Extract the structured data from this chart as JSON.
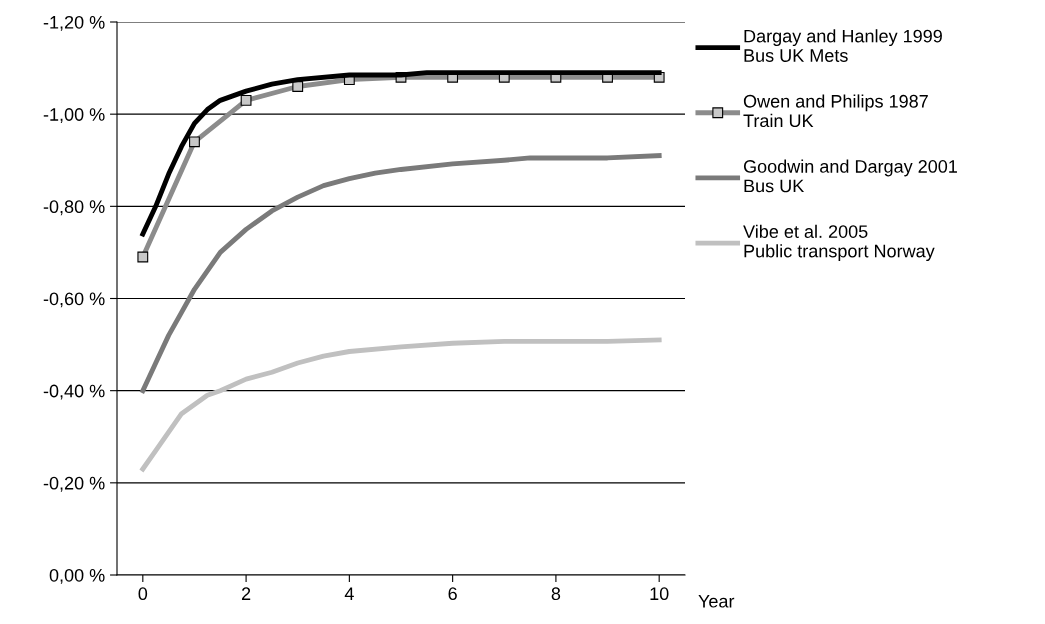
{
  "chart_data": {
    "type": "line",
    "xlabel": "Year",
    "xlim": [
      -0.5,
      10.5
    ],
    "xticks": [
      0,
      2,
      4,
      6,
      8,
      10
    ],
    "ylim": [
      0,
      -1.2
    ],
    "yticks": [
      {
        "value": 0,
        "label": "0,00 %"
      },
      {
        "value": -0.2,
        "label": "-0,20 %"
      },
      {
        "value": -0.4,
        "label": "-0,40 %"
      },
      {
        "value": -0.6,
        "label": "-0,60 %"
      },
      {
        "value": -0.8,
        "label": "-0,80 %"
      },
      {
        "value": -1.0,
        "label": "-1,00 %"
      },
      {
        "value": -1.2,
        "label": "-1,20 %"
      }
    ],
    "grid": "y",
    "legend": "right",
    "series": [
      {
        "name": "Dargay and Hanley 1999\nBus UK Mets",
        "color": "#000000",
        "marker": "none",
        "x": [
          0,
          0.25,
          0.5,
          0.75,
          1,
          1.25,
          1.5,
          2,
          2.5,
          3,
          4,
          5,
          5.5,
          6,
          7,
          8,
          9,
          10
        ],
        "values": [
          -0.74,
          -0.8,
          -0.87,
          -0.93,
          -0.98,
          -1.01,
          -1.03,
          -1.05,
          -1.065,
          -1.075,
          -1.085,
          -1.085,
          -1.09,
          -1.09,
          -1.09,
          -1.09,
          -1.09,
          -1.09
        ]
      },
      {
        "name": "Owen and Philips 1987\nTrain UK",
        "color": "#8c8c8c",
        "marker": "square",
        "x": [
          0,
          1,
          2,
          3,
          4,
          5,
          6,
          7,
          8,
          9,
          10
        ],
        "values": [
          -0.69,
          -0.94,
          -1.03,
          -1.06,
          -1.075,
          -1.08,
          -1.08,
          -1.08,
          -1.08,
          -1.08,
          -1.08
        ]
      },
      {
        "name": "Goodwin and Dargay 2001\nBus UK",
        "color": "#7a7a7a",
        "marker": "none",
        "x": [
          0,
          0.25,
          0.5,
          0.75,
          1,
          1.5,
          2,
          2.5,
          3,
          3.5,
          4,
          4.5,
          5,
          6,
          7,
          7.5,
          8,
          9,
          10
        ],
        "values": [
          -0.4,
          -0.46,
          -0.52,
          -0.57,
          -0.62,
          -0.7,
          -0.75,
          -0.79,
          -0.82,
          -0.845,
          -0.86,
          -0.872,
          -0.88,
          -0.892,
          -0.9,
          -0.905,
          -0.905,
          -0.905,
          -0.91
        ]
      },
      {
        "name": "Vibe et al. 2005\nPublic transport Norway",
        "color": "#c0c0c0",
        "marker": "none",
        "x": [
          0,
          0.25,
          0.5,
          0.75,
          1,
          1.25,
          1.5,
          2,
          2.5,
          3,
          3.5,
          4,
          5,
          6,
          7,
          8,
          9,
          10
        ],
        "values": [
          -0.23,
          -0.27,
          -0.31,
          -0.35,
          -0.37,
          -0.39,
          -0.4,
          -0.425,
          -0.44,
          -0.46,
          -0.475,
          -0.485,
          -0.495,
          -0.503,
          -0.507,
          -0.507,
          -0.507,
          -0.51
        ]
      }
    ]
  }
}
